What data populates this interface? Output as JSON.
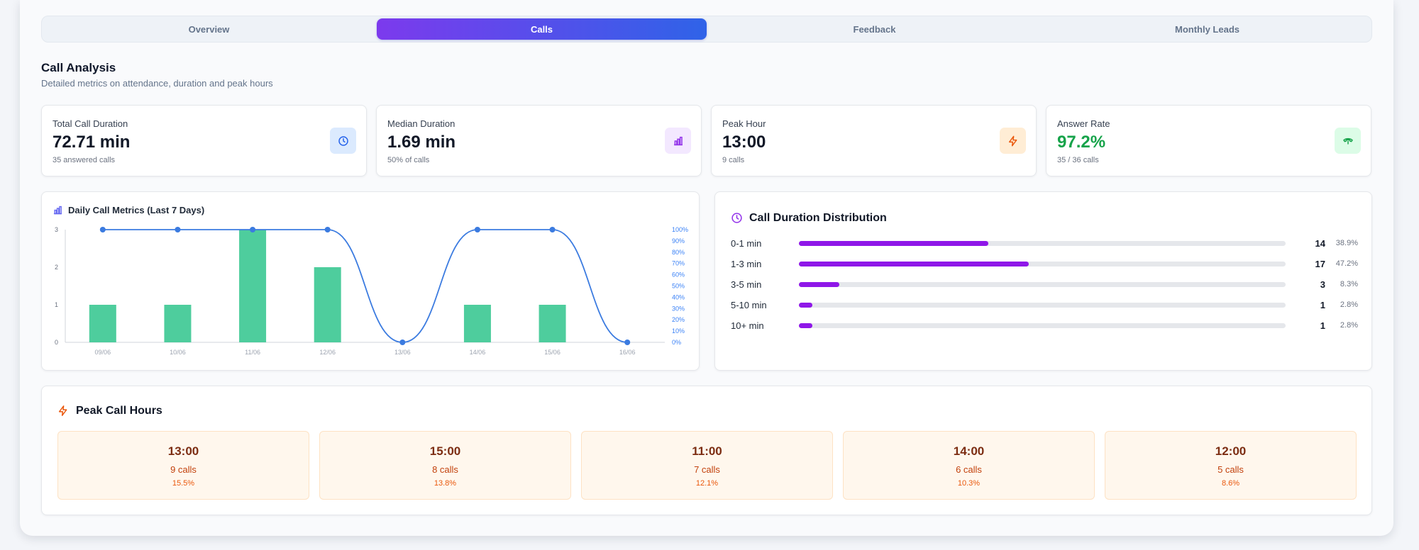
{
  "tabs": [
    {
      "label": "Overview",
      "active": false
    },
    {
      "label": "Calls",
      "active": true
    },
    {
      "label": "Feedback",
      "active": false
    },
    {
      "label": "Monthly Leads",
      "active": false
    }
  ],
  "section": {
    "title": "Call Analysis",
    "subtitle": "Detailed metrics on attendance, duration and peak hours"
  },
  "stats": [
    {
      "label": "Total Call Duration",
      "value": "72.71 min",
      "sub": "35 answered calls",
      "icon": "clock-icon",
      "icon_bg": "#dbeafe",
      "icon_color": "#2563eb",
      "value_color": "#111827"
    },
    {
      "label": "Median Duration",
      "value": "1.69 min",
      "sub": "50% of calls",
      "icon": "bar-chart-icon",
      "icon_bg": "#f3e8ff",
      "icon_color": "#9333ea",
      "value_color": "#111827"
    },
    {
      "label": "Peak Hour",
      "value": "13:00",
      "sub": "9 calls",
      "icon": "zap-icon",
      "icon_bg": "#ffedd5",
      "icon_color": "#ea580c",
      "value_color": "#111827"
    },
    {
      "label": "Answer Rate",
      "value": "97.2%",
      "sub": "35 / 36 calls",
      "icon": "phone-icon",
      "icon_bg": "#dcfce7",
      "icon_color": "#16a34a",
      "value_color": "#16a34a"
    }
  ],
  "chart_data": {
    "type": "bar",
    "title": "Daily Call Metrics (Last 7 Days)",
    "categories": [
      "09/06",
      "10/06",
      "11/06",
      "12/06",
      "13/06",
      "14/06",
      "15/06",
      "16/06"
    ],
    "y_ticks": [
      "0",
      "1",
      "2",
      "3"
    ],
    "y2_ticks": [
      "0%",
      "10%",
      "20%",
      "30%",
      "40%",
      "50%",
      "60%",
      "70%",
      "80%",
      "90%",
      "100%"
    ],
    "ylim": [
      0,
      3
    ],
    "y2lim": [
      0,
      100
    ],
    "series": [
      {
        "type": "bar",
        "axis": "left",
        "color": "#4ecd9d",
        "values": [
          1,
          1,
          3,
          2,
          0,
          1,
          1,
          0
        ]
      },
      {
        "type": "line",
        "axis": "right",
        "color": "#3b7be0",
        "values": [
          100,
          100,
          100,
          100,
          0,
          100,
          100,
          0
        ]
      }
    ],
    "grid": false,
    "legend": "none"
  },
  "distribution": {
    "title": "Call Duration Distribution",
    "bar_color": "#8f17e8",
    "rows": [
      {
        "label": "0-1 min",
        "count": "14",
        "pct": "38.9%",
        "fraction": 0.389
      },
      {
        "label": "1-3 min",
        "count": "17",
        "pct": "47.2%",
        "fraction": 0.472
      },
      {
        "label": "3-5 min",
        "count": "3",
        "pct": "8.3%",
        "fraction": 0.083
      },
      {
        "label": "5-10 min",
        "count": "1",
        "pct": "2.8%",
        "fraction": 0.028
      },
      {
        "label": "10+ min",
        "count": "1",
        "pct": "2.8%",
        "fraction": 0.028
      }
    ]
  },
  "peak": {
    "title": "Peak Call Hours",
    "tiles": [
      {
        "hour": "13:00",
        "calls": "9 calls",
        "pct": "15.5%"
      },
      {
        "hour": "15:00",
        "calls": "8 calls",
        "pct": "13.8%"
      },
      {
        "hour": "11:00",
        "calls": "7 calls",
        "pct": "12.1%"
      },
      {
        "hour": "14:00",
        "calls": "6 calls",
        "pct": "10.3%"
      },
      {
        "hour": "12:00",
        "calls": "5 calls",
        "pct": "8.6%"
      }
    ]
  }
}
